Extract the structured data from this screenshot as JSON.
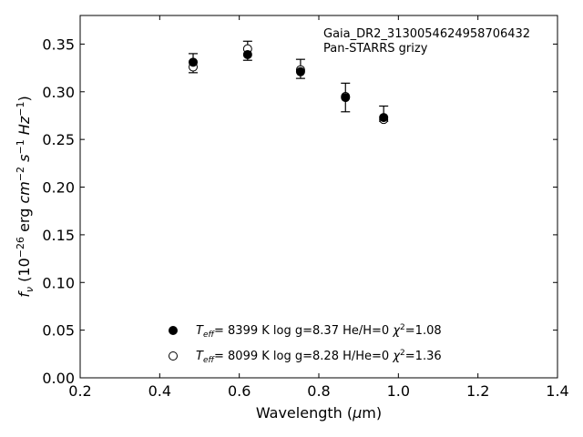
{
  "chart_data": {
    "type": "scatter",
    "xlabel": "Wavelength (μm)",
    "ylabel": "f_ν (10^-26 erg cm^-2 s^-1 Hz^-1)",
    "xlim": [
      0.2,
      1.4
    ],
    "ylim": [
      0.0,
      0.38
    ],
    "xticks": [
      0.2,
      0.4,
      0.6,
      0.8,
      1.0,
      1.2,
      1.4
    ],
    "xtick_labels": [
      "0.2",
      "0.4",
      "0.6",
      "0.8",
      "1.0",
      "1.2",
      "1.4"
    ],
    "yticks": [
      0.0,
      0.05,
      0.1,
      0.15,
      0.2,
      0.25,
      0.3,
      0.35
    ],
    "ytick_labels": [
      "0.00",
      "0.05",
      "0.10",
      "0.15",
      "0.20",
      "0.25",
      "0.30",
      "0.35"
    ],
    "grid": false,
    "annotation": [
      "Gaia_DR2_3130054624958706432",
      "Pan-STARRS grizy"
    ],
    "observed": {
      "x": [
        0.484,
        0.621,
        0.754,
        0.867,
        0.963
      ],
      "y": [
        0.33,
        0.343,
        0.324,
        0.294,
        0.277
      ],
      "err": [
        0.01,
        0.01,
        0.01,
        0.015,
        0.008
      ]
    },
    "series": [
      {
        "marker": "filled",
        "x": [
          0.484,
          0.621,
          0.754,
          0.867,
          0.963
        ],
        "y": [
          0.331,
          0.339,
          0.321,
          0.294,
          0.273
        ],
        "legend": {
          "teff_label": "T_eff=",
          "teff": "8399 K",
          "logg": "log g=8.37",
          "comp": "He/H=0",
          "chi": "χ²=1.08"
        }
      },
      {
        "marker": "open",
        "x": [
          0.484,
          0.621,
          0.754,
          0.867,
          0.963
        ],
        "y": [
          0.326,
          0.345,
          0.323,
          0.295,
          0.271
        ],
        "legend": {
          "teff_label": "T_eff=",
          "teff": "8099 K",
          "logg": "log g=8.28",
          "comp": "H/He=0",
          "chi": "χ²=1.36"
        }
      }
    ],
    "legend_position": "lower-center"
  }
}
